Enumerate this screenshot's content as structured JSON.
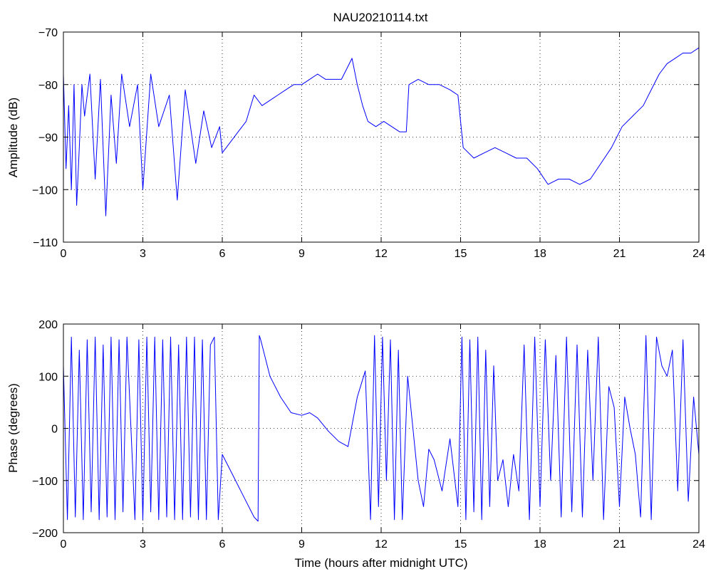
{
  "chart_data": [
    {
      "type": "line",
      "title": "NAU20210114.txt",
      "xlabel": "",
      "ylabel": "Amplitude (dB)",
      "xlim": [
        0,
        24
      ],
      "ylim": [
        -110,
        -70
      ],
      "xticks": [
        0,
        3,
        6,
        9,
        12,
        15,
        18,
        21,
        24
      ],
      "yticks": [
        -110,
        -100,
        -90,
        -80,
        -70
      ],
      "grid": true,
      "color": "#0000ff",
      "series": [
        {
          "x": [
            0,
            0.1,
            0.2,
            0.3,
            0.4,
            0.5,
            0.6,
            0.7,
            0.8,
            1.0,
            1.2,
            1.4,
            1.6,
            1.8,
            2.0,
            2.2,
            2.5,
            2.8,
            3.0,
            3.3,
            3.6,
            4.0,
            4.3,
            4.6,
            5.0,
            5.3,
            5.6,
            5.9,
            6.0,
            6.3,
            6.6,
            6.9,
            7.2,
            7.5,
            7.8,
            8.1,
            8.4,
            8.7,
            9.0,
            9.3,
            9.6,
            9.9,
            10.2,
            10.5,
            10.7,
            10.9,
            11.1,
            11.3,
            11.5,
            11.8,
            12.1,
            12.4,
            12.7,
            12.95,
            13.05,
            13.4,
            13.8,
            14.2,
            14.6,
            14.9,
            15.1,
            15.5,
            15.9,
            16.3,
            16.7,
            17.1,
            17.5,
            17.9,
            18.3,
            18.7,
            19.1,
            19.5,
            19.9,
            20.3,
            20.7,
            21.1,
            21.5,
            21.9,
            22.2,
            22.5,
            22.8,
            23.1,
            23.4,
            23.7,
            24.0
          ],
          "values": [
            -78,
            -96,
            -84,
            -100,
            -80,
            -103,
            -92,
            -80,
            -86,
            -78,
            -98,
            -79,
            -105,
            -82,
            -95,
            -78,
            -88,
            -80,
            -100,
            -78,
            -88,
            -82,
            -102,
            -81,
            -95,
            -85,
            -92,
            -88,
            -93,
            -91,
            -89,
            -87,
            -82,
            -84,
            -83,
            -82,
            -81,
            -80,
            -80,
            -79,
            -78,
            -79,
            -79,
            -79,
            -77,
            -75,
            -80,
            -84,
            -87,
            -88,
            -87,
            -88,
            -89,
            -89,
            -80,
            -79,
            -80,
            -80,
            -81,
            -82,
            -92,
            -94,
            -93,
            -92,
            -93,
            -94,
            -94,
            -96,
            -99,
            -98,
            -98,
            -99,
            -98,
            -95,
            -92,
            -88,
            -86,
            -84,
            -81,
            -78,
            -76,
            -75,
            -74,
            -74,
            -73
          ]
        }
      ]
    },
    {
      "type": "line",
      "title": "",
      "xlabel": "Time (hours after midnight UTC)",
      "ylabel": "Phase (degrees)",
      "xlim": [
        0,
        24
      ],
      "ylim": [
        -200,
        200
      ],
      "xticks": [
        0,
        3,
        6,
        9,
        12,
        15,
        18,
        21,
        24
      ],
      "yticks": [
        -200,
        -100,
        0,
        100,
        200
      ],
      "grid": true,
      "color": "#0000ff",
      "series": [
        {
          "x": [
            0,
            0.15,
            0.3,
            0.45,
            0.6,
            0.75,
            0.9,
            1.05,
            1.2,
            1.35,
            1.5,
            1.65,
            1.8,
            1.95,
            2.1,
            2.25,
            2.4,
            2.55,
            2.7,
            2.85,
            3.0,
            3.15,
            3.3,
            3.45,
            3.6,
            3.75,
            3.9,
            4.05,
            4.2,
            4.35,
            4.5,
            4.65,
            4.8,
            4.95,
            5.1,
            5.25,
            5.4,
            5.55,
            5.7,
            5.85,
            6.0,
            6.4,
            6.8,
            7.2,
            7.35,
            7.4,
            7.45,
            7.8,
            8.2,
            8.6,
            9.0,
            9.3,
            9.6,
            10.0,
            10.4,
            10.75,
            11.1,
            11.4,
            11.6,
            11.75,
            11.9,
            12.05,
            12.2,
            12.35,
            12.5,
            12.65,
            12.8,
            13.0,
            13.2,
            13.4,
            13.6,
            13.8,
            14.0,
            14.3,
            14.6,
            14.9,
            15.05,
            15.2,
            15.35,
            15.5,
            15.65,
            15.8,
            15.95,
            16.1,
            16.25,
            16.4,
            16.6,
            16.8,
            17.0,
            17.2,
            17.4,
            17.6,
            17.8,
            18.0,
            18.2,
            18.4,
            18.6,
            18.8,
            19.0,
            19.2,
            19.4,
            19.6,
            19.8,
            20.0,
            20.2,
            20.4,
            20.6,
            20.8,
            21.0,
            21.2,
            21.4,
            21.6,
            21.8,
            22.0,
            22.2,
            22.4,
            22.6,
            22.8,
            23.0,
            23.2,
            23.4,
            23.6,
            23.8,
            24.0
          ],
          "values": [
            120,
            -175,
            175,
            -170,
            150,
            -175,
            170,
            -160,
            175,
            -175,
            160,
            -170,
            175,
            -175,
            170,
            -160,
            175,
            0,
            -175,
            170,
            -175,
            175,
            -160,
            175,
            -175,
            170,
            -170,
            175,
            -175,
            160,
            -175,
            175,
            -170,
            175,
            -175,
            170,
            -175,
            160,
            175,
            -175,
            -50,
            -90,
            -130,
            -170,
            -178,
            178,
            170,
            100,
            60,
            30,
            25,
            30,
            20,
            -5,
            -25,
            -35,
            60,
            110,
            -175,
            178,
            -150,
            175,
            -100,
            170,
            -175,
            150,
            -175,
            100,
            0,
            -100,
            -150,
            -40,
            -60,
            -120,
            -20,
            -150,
            175,
            -175,
            170,
            -160,
            175,
            -175,
            150,
            -150,
            120,
            -100,
            -60,
            -150,
            -50,
            -120,
            160,
            -175,
            175,
            -150,
            170,
            -100,
            140,
            -170,
            175,
            -160,
            160,
            -170,
            150,
            -100,
            175,
            -175,
            80,
            40,
            -150,
            60,
            0,
            -50,
            -170,
            178,
            -175,
            175,
            120,
            100,
            150,
            -120,
            170,
            -140,
            60,
            -50
          ]
        }
      ]
    }
  ]
}
